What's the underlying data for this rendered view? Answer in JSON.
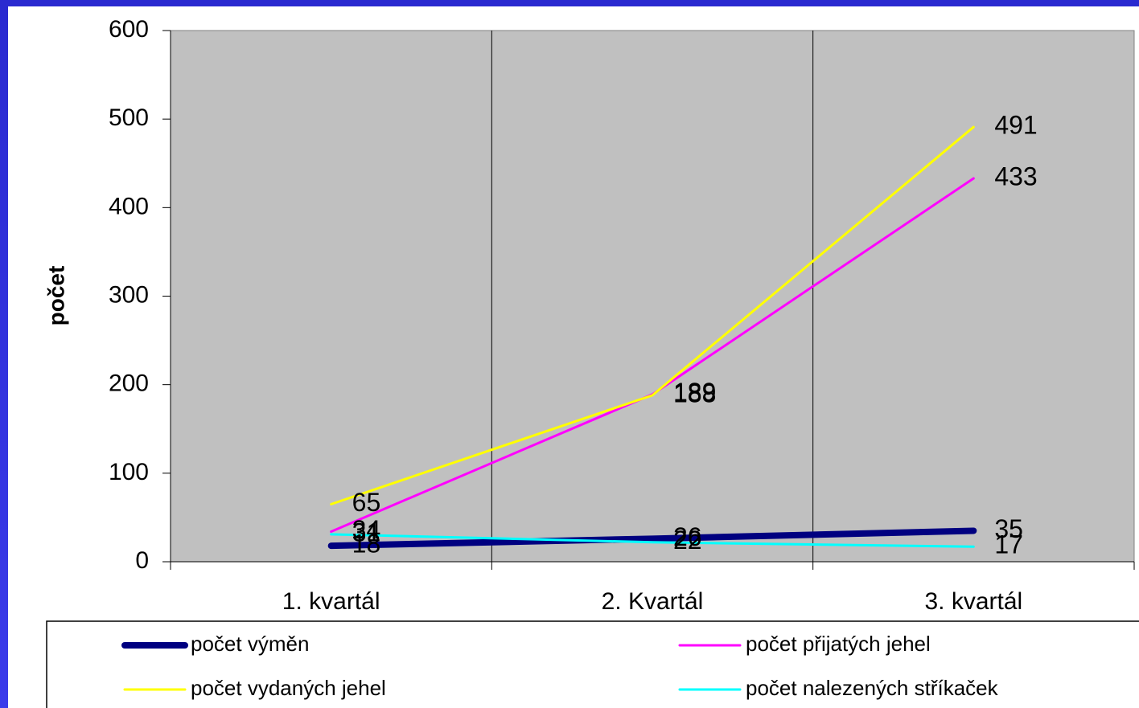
{
  "chart_data": {
    "type": "line",
    "categories": [
      "1. kvartál",
      "2. Kvartál",
      "3. kvartál"
    ],
    "y_label": "počet",
    "ylim": [
      0,
      600
    ],
    "yticks": [
      0,
      100,
      200,
      300,
      400,
      500,
      600
    ],
    "grid": true,
    "series": [
      {
        "name": "počet výměn",
        "color": "#000080",
        "width": 8,
        "values": [
          18,
          26,
          35
        ]
      },
      {
        "name": "počet přijatých jehel",
        "color": "#ff00ff",
        "width": 3,
        "values": [
          34,
          189,
          433
        ]
      },
      {
        "name": "počet vydaných jehel",
        "color": "#ffff00",
        "width": 3,
        "values": [
          65,
          188,
          491
        ]
      },
      {
        "name": "počet nalezených stříkaček",
        "color": "#00ffff",
        "width": 3,
        "values": [
          31,
          22,
          17
        ]
      }
    ]
  }
}
